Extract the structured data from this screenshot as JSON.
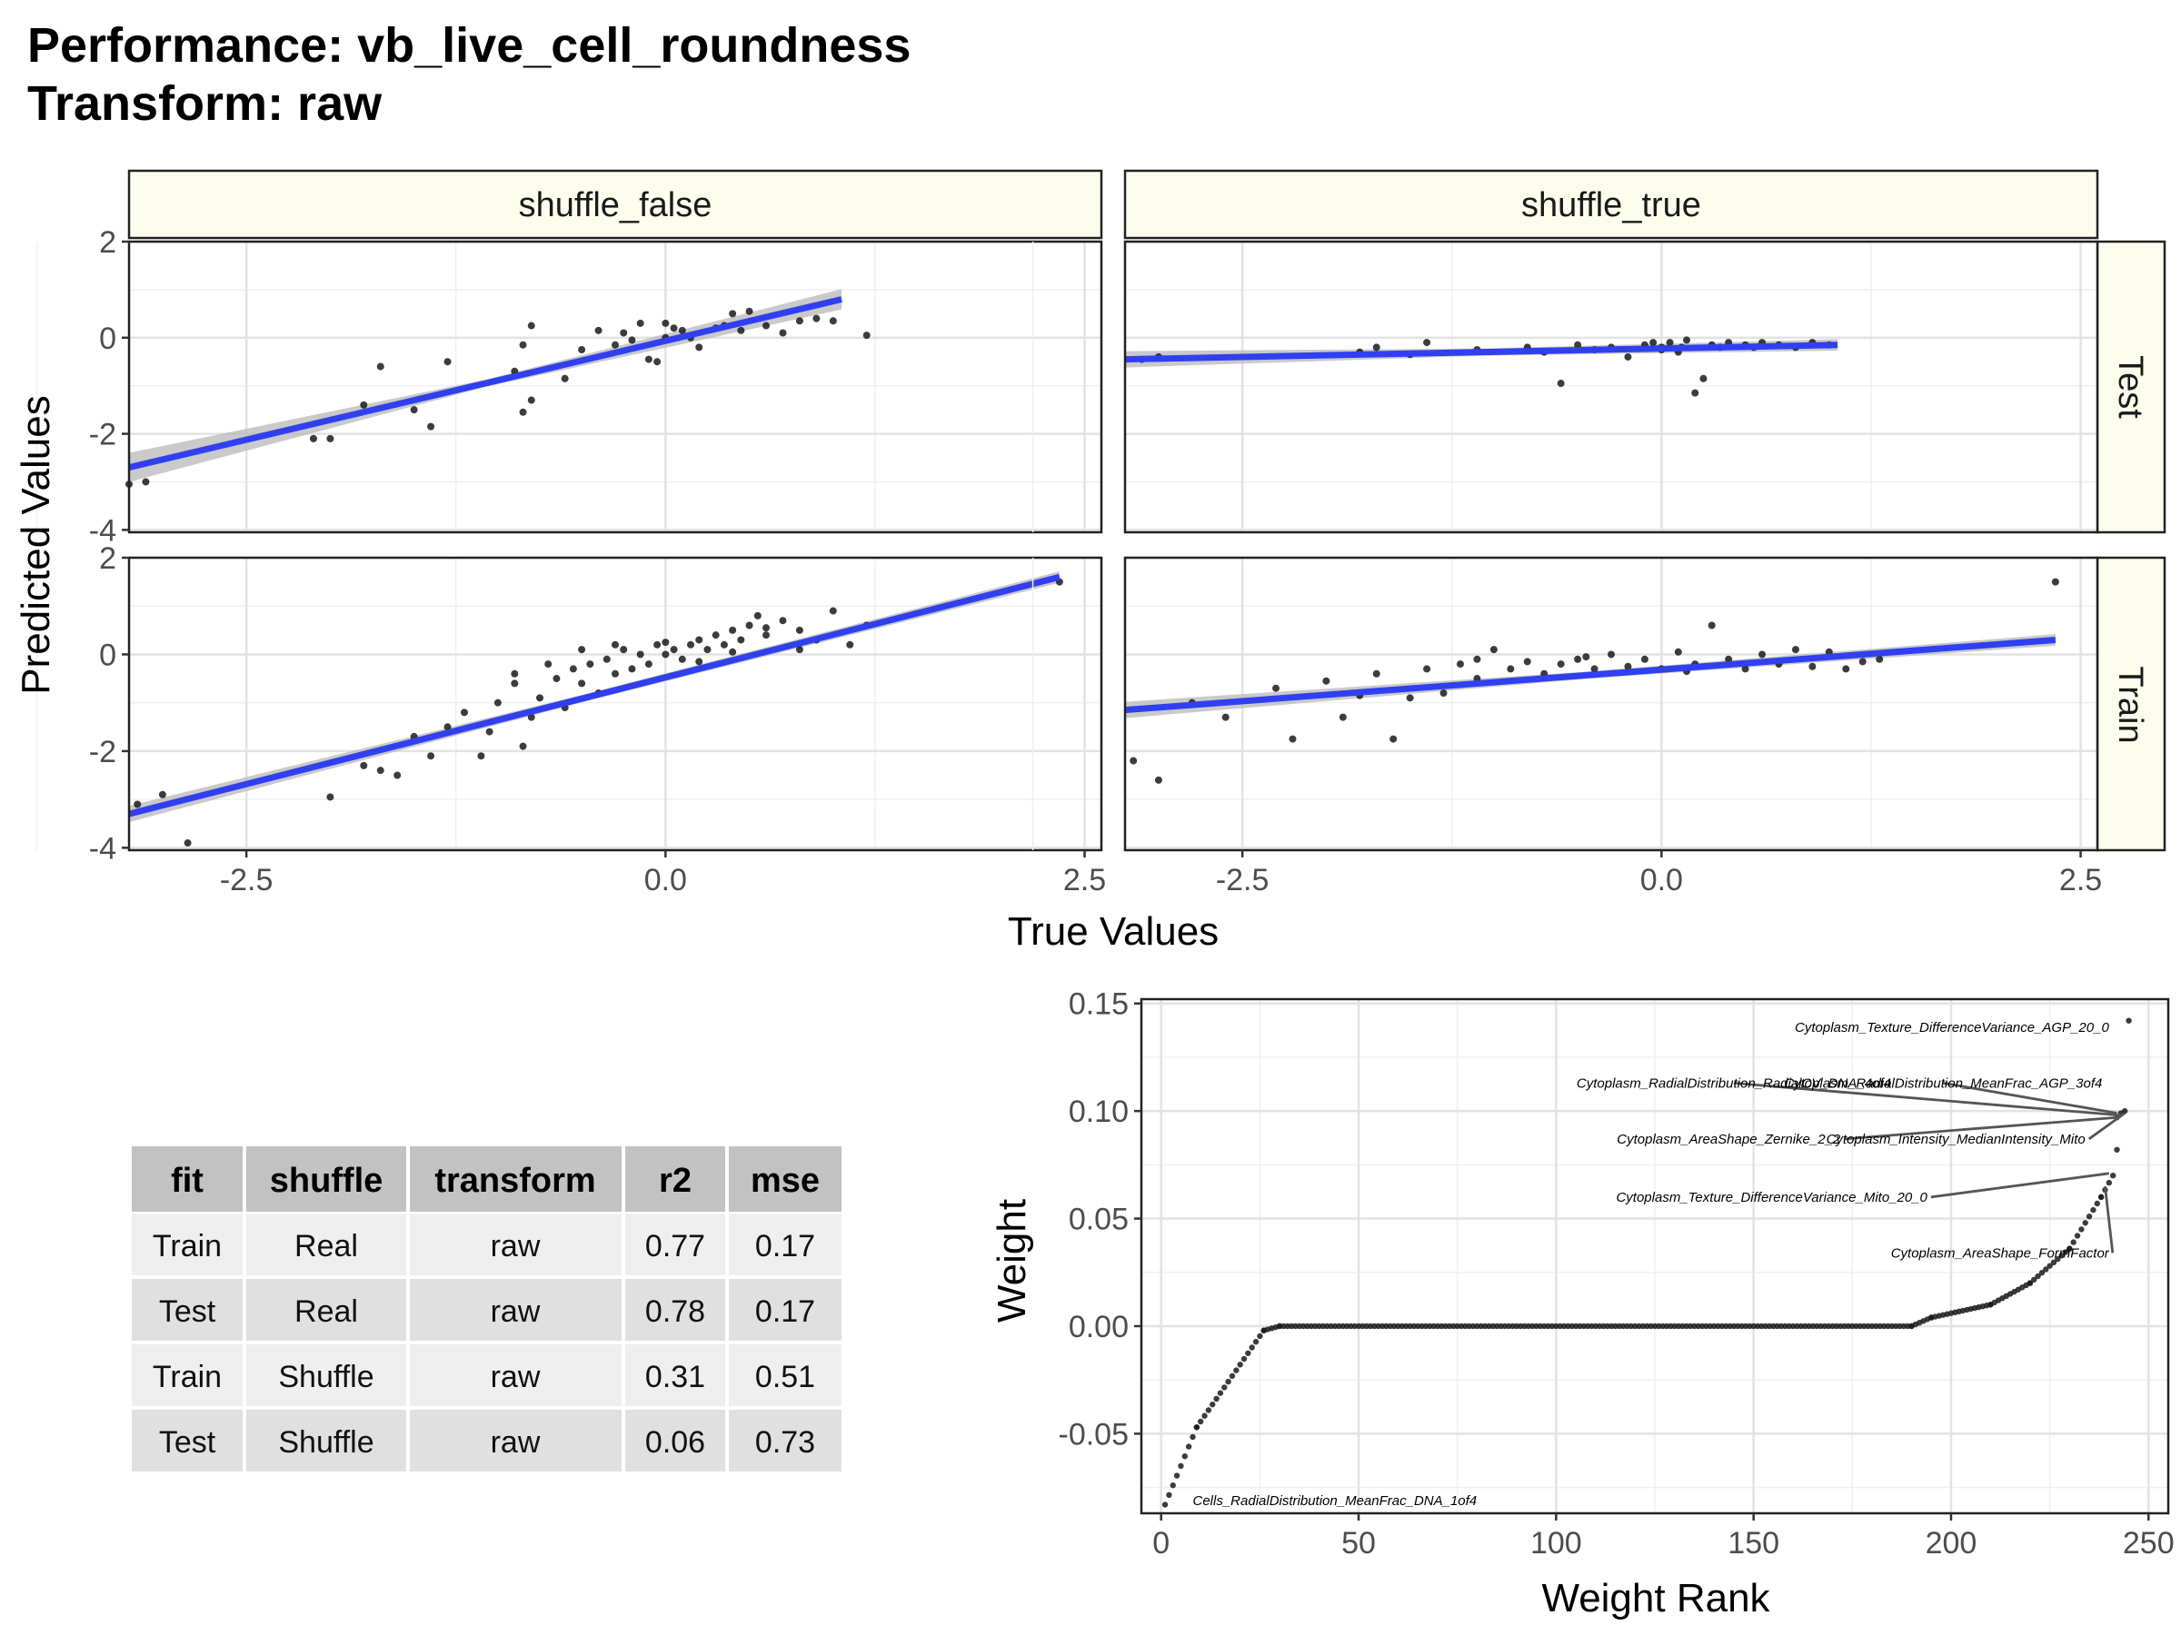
{
  "title": {
    "line1": "Performance: vb_live_cell_roundness",
    "line2": "Transform: raw"
  },
  "facets": {
    "columns": [
      "shuffle_false",
      "shuffle_true"
    ],
    "rows": [
      "Test",
      "Train"
    ],
    "xlabel": "True Values",
    "ylabel": "Predicted Values",
    "xticks": [
      -2.5,
      0.0,
      2.5
    ],
    "xtick_labels": [
      "-2.5",
      "0.0",
      "2.5"
    ],
    "yticks": [
      -4,
      -2,
      0,
      2
    ],
    "ytick_labels": [
      "-4",
      "-2",
      "0",
      "2"
    ]
  },
  "table": {
    "headers": [
      "fit",
      "shuffle",
      "transform",
      "r2",
      "mse"
    ],
    "rows": [
      [
        "Train",
        "Real",
        "raw",
        "0.77",
        "0.17"
      ],
      [
        "Test",
        "Real",
        "raw",
        "0.78",
        "0.17"
      ],
      [
        "Train",
        "Shuffle",
        "raw",
        "0.31",
        "0.51"
      ],
      [
        "Test",
        "Shuffle",
        "raw",
        "0.06",
        "0.73"
      ]
    ]
  },
  "weights": {
    "xlabel": "Weight Rank",
    "ylabel": "Weight",
    "xticks": [
      0,
      50,
      100,
      150,
      200,
      250
    ],
    "xtick_labels": [
      "0",
      "50",
      "100",
      "150",
      "200",
      "250"
    ],
    "yticks": [
      -0.05,
      0.0,
      0.05,
      0.1,
      0.15
    ],
    "ytick_labels": [
      "-0.05",
      "0.00",
      "0.05",
      "0.10",
      "0.15"
    ],
    "annotations": [
      "Cytoplasm_Texture_DifferenceVariance_AGP_20_0",
      "Cytoplasm_RadialDistribution_RadialCV_DNA_4of4",
      "Cytoplasm_RadialDistribution_MeanFrac_AGP_3of4",
      "Cytoplasm_AreaShape_Zernike_2_2",
      "Cytoplasm_Intensity_MedianIntensity_Mito",
      "Cytoplasm_Texture_DifferenceVariance_Mito_20_0",
      "Cytoplasm_AreaShape_FormFactor",
      "Cells_RadialDistribution_MeanFrac_DNA_1of4"
    ]
  },
  "colors": {
    "fit_line": "#3040f0",
    "ribbon": "#b8b8b8",
    "strip_bg": "#fdfdee",
    "point": "#1a1a1a",
    "header_bg": "#c2c2c2",
    "row_odd": "#efefef",
    "row_even": "#e0e0e0"
  },
  "chart_data": [
    {
      "type": "scatter",
      "panel": "shuffle_false / Test",
      "xlim": [
        -3.2,
        2.6
      ],
      "ylim": [
        -4.05,
        2.0
      ],
      "fit": {
        "x": [
          -3.2,
          1.05
        ],
        "y": [
          -2.7,
          0.8
        ]
      },
      "points": [
        [
          -3.2,
          -3.05
        ],
        [
          -3.1,
          -3.0
        ],
        [
          -2.1,
          -2.1
        ],
        [
          -2.0,
          -2.1
        ],
        [
          -1.8,
          -1.4
        ],
        [
          -1.7,
          -0.6
        ],
        [
          -1.5,
          -1.5
        ],
        [
          -1.4,
          -1.85
        ],
        [
          -1.3,
          -0.5
        ],
        [
          -0.9,
          -0.7
        ],
        [
          -0.85,
          -1.55
        ],
        [
          -0.8,
          -1.3
        ],
        [
          -0.85,
          -0.15
        ],
        [
          -0.8,
          0.25
        ],
        [
          -0.6,
          -0.85
        ],
        [
          -0.5,
          -0.25
        ],
        [
          -0.3,
          -0.15
        ],
        [
          -0.25,
          0.1
        ],
        [
          -0.2,
          -0.05
        ],
        [
          -0.15,
          0.3
        ],
        [
          -0.1,
          -0.45
        ],
        [
          -0.05,
          -0.5
        ],
        [
          0.0,
          0.0
        ],
        [
          0.05,
          0.2
        ],
        [
          0.1,
          0.15
        ],
        [
          0.2,
          -0.2
        ],
        [
          0.3,
          0.2
        ],
        [
          0.35,
          0.25
        ],
        [
          0.4,
          0.5
        ],
        [
          0.45,
          0.15
        ],
        [
          0.5,
          0.55
        ],
        [
          0.6,
          0.25
        ],
        [
          0.7,
          0.1
        ],
        [
          0.8,
          0.35
        ],
        [
          0.9,
          0.4
        ],
        [
          1.0,
          0.35
        ],
        [
          1.2,
          0.05
        ],
        [
          0.0,
          0.3
        ],
        [
          -0.4,
          0.15
        ],
        [
          0.15,
          0.0
        ]
      ]
    },
    {
      "type": "scatter",
      "panel": "shuffle_true / Test",
      "xlim": [
        -3.2,
        2.6
      ],
      "ylim": [
        -4.05,
        2.0
      ],
      "fit": {
        "x": [
          -3.2,
          1.05
        ],
        "y": [
          -0.45,
          -0.15
        ]
      },
      "points": [
        [
          -3.1,
          -0.45
        ],
        [
          -3.0,
          -0.4
        ],
        [
          -1.8,
          -0.3
        ],
        [
          -1.7,
          -0.2
        ],
        [
          -1.5,
          -0.35
        ],
        [
          -1.4,
          -0.1
        ],
        [
          -1.1,
          -0.25
        ],
        [
          -0.8,
          -0.2
        ],
        [
          -0.7,
          -0.3
        ],
        [
          -0.6,
          -0.95
        ],
        [
          -0.5,
          -0.15
        ],
        [
          -0.4,
          -0.25
        ],
        [
          -0.3,
          -0.2
        ],
        [
          -0.2,
          -0.4
        ],
        [
          -0.1,
          -0.15
        ],
        [
          -0.05,
          -0.1
        ],
        [
          0.0,
          -0.2
        ],
        [
          0.05,
          -0.1
        ],
        [
          0.1,
          -0.3
        ],
        [
          0.15,
          -0.05
        ],
        [
          0.2,
          -1.15
        ],
        [
          0.25,
          -0.85
        ],
        [
          0.3,
          -0.15
        ],
        [
          0.35,
          -0.2
        ],
        [
          0.4,
          -0.1
        ],
        [
          0.5,
          -0.15
        ],
        [
          0.55,
          -0.2
        ],
        [
          0.6,
          -0.1
        ],
        [
          0.7,
          -0.15
        ],
        [
          0.8,
          -0.2
        ],
        [
          0.9,
          -0.1
        ],
        [
          1.0,
          -0.15
        ],
        [
          0.0,
          -0.25
        ],
        [
          0.12,
          -0.2
        ]
      ]
    },
    {
      "type": "scatter",
      "panel": "shuffle_false / Train",
      "xlim": [
        -3.2,
        2.6
      ],
      "ylim": [
        -4.05,
        2.0
      ],
      "fit": {
        "x": [
          -3.2,
          2.35
        ],
        "y": [
          -3.3,
          1.6
        ]
      },
      "points": [
        [
          -3.15,
          -3.1
        ],
        [
          -3.0,
          -2.9
        ],
        [
          -2.85,
          -3.9
        ],
        [
          -2.0,
          -2.95
        ],
        [
          -1.8,
          -2.3
        ],
        [
          -1.7,
          -2.4
        ],
        [
          -1.6,
          -2.5
        ],
        [
          -1.4,
          -2.1
        ],
        [
          -1.3,
          -1.5
        ],
        [
          -1.2,
          -1.2
        ],
        [
          -1.1,
          -2.1
        ],
        [
          -1.05,
          -1.6
        ],
        [
          -1.0,
          -1.0
        ],
        [
          -0.9,
          -0.6
        ],
        [
          -0.85,
          -1.9
        ],
        [
          -0.8,
          -1.3
        ],
        [
          -0.75,
          -0.9
        ],
        [
          -0.7,
          -0.2
        ],
        [
          -0.65,
          -0.5
        ],
        [
          -0.6,
          -1.1
        ],
        [
          -0.55,
          -0.3
        ],
        [
          -0.5,
          -0.6
        ],
        [
          -0.45,
          -0.2
        ],
        [
          -0.4,
          -0.8
        ],
        [
          -0.35,
          -0.1
        ],
        [
          -0.3,
          -0.4
        ],
        [
          -0.25,
          0.1
        ],
        [
          -0.2,
          -0.3
        ],
        [
          -0.15,
          0.0
        ],
        [
          -0.1,
          -0.2
        ],
        [
          -0.05,
          0.2
        ],
        [
          0.0,
          0.0
        ],
        [
          0.05,
          0.1
        ],
        [
          0.1,
          -0.1
        ],
        [
          0.15,
          0.2
        ],
        [
          0.2,
          0.3
        ],
        [
          0.25,
          0.1
        ],
        [
          0.3,
          0.4
        ],
        [
          0.35,
          0.2
        ],
        [
          0.4,
          0.5
        ],
        [
          0.45,
          0.3
        ],
        [
          0.5,
          0.6
        ],
        [
          0.55,
          0.8
        ],
        [
          0.6,
          0.4
        ],
        [
          0.7,
          0.7
        ],
        [
          0.8,
          0.5
        ],
        [
          0.9,
          0.3
        ],
        [
          1.0,
          0.9
        ],
        [
          1.1,
          0.2
        ],
        [
          1.2,
          0.6
        ],
        [
          2.35,
          1.5
        ],
        [
          -0.3,
          0.2
        ],
        [
          0.0,
          0.25
        ],
        [
          0.2,
          -0.15
        ],
        [
          0.4,
          0.05
        ],
        [
          -0.5,
          0.1
        ],
        [
          0.6,
          0.55
        ],
        [
          0.8,
          0.1
        ],
        [
          -0.9,
          -0.4
        ],
        [
          -1.5,
          -1.7
        ]
      ]
    },
    {
      "type": "scatter",
      "panel": "shuffle_true / Train",
      "xlim": [
        -3.2,
        2.6
      ],
      "ylim": [
        -4.05,
        2.0
      ],
      "fit": {
        "x": [
          -3.2,
          2.35
        ],
        "y": [
          -1.15,
          0.3
        ]
      },
      "points": [
        [
          -3.15,
          -2.2
        ],
        [
          -3.0,
          -2.6
        ],
        [
          -2.8,
          -1.0
        ],
        [
          -2.6,
          -1.3
        ],
        [
          -2.3,
          -0.7
        ],
        [
          -2.2,
          -1.75
        ],
        [
          -2.0,
          -0.55
        ],
        [
          -1.9,
          -1.3
        ],
        [
          -1.7,
          -0.4
        ],
        [
          -1.6,
          -1.75
        ],
        [
          -1.5,
          -0.9
        ],
        [
          -1.4,
          -0.3
        ],
        [
          -1.3,
          -0.8
        ],
        [
          -1.2,
          -0.2
        ],
        [
          -1.1,
          -0.5
        ],
        [
          -1.0,
          0.1
        ],
        [
          -0.9,
          -0.3
        ],
        [
          -0.8,
          -0.15
        ],
        [
          -0.7,
          -0.4
        ],
        [
          -0.6,
          -0.2
        ],
        [
          -0.5,
          -0.1
        ],
        [
          -0.4,
          -0.3
        ],
        [
          -0.3,
          0.0
        ],
        [
          -0.2,
          -0.25
        ],
        [
          -0.1,
          -0.1
        ],
        [
          0.0,
          -0.3
        ],
        [
          0.1,
          0.05
        ],
        [
          0.2,
          -0.2
        ],
        [
          0.3,
          0.6
        ],
        [
          0.4,
          -0.1
        ],
        [
          0.5,
          -0.3
        ],
        [
          0.6,
          0.0
        ],
        [
          0.7,
          -0.2
        ],
        [
          0.8,
          0.1
        ],
        [
          0.9,
          -0.25
        ],
        [
          1.0,
          0.05
        ],
        [
          1.1,
          -0.3
        ],
        [
          1.2,
          -0.15
        ],
        [
          1.3,
          -0.1
        ],
        [
          2.35,
          1.5
        ],
        [
          -1.8,
          -0.85
        ],
        [
          -1.1,
          -0.1
        ],
        [
          -0.45,
          -0.05
        ],
        [
          0.15,
          -0.35
        ]
      ]
    },
    {
      "type": "scatter",
      "panel": "weights",
      "xlabel": "Weight Rank",
      "ylabel": "Weight",
      "xlim": [
        -5,
        255
      ],
      "ylim": [
        -0.087,
        0.152
      ],
      "segments": [
        {
          "x": [
            1,
            9
          ],
          "y": [
            -0.083,
            -0.047
          ]
        },
        {
          "x": [
            9,
            26
          ],
          "y": [
            -0.047,
            -0.002
          ]
        },
        {
          "x": [
            26,
            30
          ],
          "y": [
            -0.002,
            0.0
          ]
        },
        {
          "x": [
            30,
            190
          ],
          "y": [
            0.0,
            0.0
          ]
        },
        {
          "x": [
            190,
            195
          ],
          "y": [
            0.0,
            0.004
          ]
        },
        {
          "x": [
            195,
            210
          ],
          "y": [
            0.004,
            0.01
          ]
        },
        {
          "x": [
            210,
            220
          ],
          "y": [
            0.01,
            0.02
          ]
        },
        {
          "x": [
            220,
            230
          ],
          "y": [
            0.02,
            0.036
          ]
        },
        {
          "x": [
            230,
            238
          ],
          "y": [
            0.036,
            0.06
          ]
        },
        {
          "x": [
            238,
            241
          ],
          "y": [
            0.06,
            0.07
          ]
        }
      ],
      "extra_points": [
        [
          242,
          0.082
        ],
        [
          242,
          0.097
        ],
        [
          243,
          0.099
        ],
        [
          244,
          0.1
        ],
        [
          245,
          0.142
        ]
      ],
      "label_anchors": [
        {
          "label_x": 240,
          "label_y": 0.139,
          "point_x": 245,
          "point_y": 0.142,
          "leader": false,
          "align": "end"
        },
        {
          "label_x": 145,
          "label_y": 0.113,
          "point_x": 243,
          "point_y": 0.098,
          "leader": true,
          "align": "middle"
        },
        {
          "label_x": 198,
          "label_y": 0.113,
          "point_x": 242,
          "point_y": 0.099,
          "leader": true,
          "align": "middle"
        },
        {
          "label_x": 172,
          "label_y": 0.087,
          "point_x": 242,
          "point_y": 0.097,
          "leader": true,
          "align": "end"
        },
        {
          "label_x": 234,
          "label_y": 0.087,
          "point_x": 244,
          "point_y": 0.099,
          "leader": true,
          "align": "end"
        },
        {
          "label_x": 194,
          "label_y": 0.06,
          "point_x": 240,
          "point_y": 0.071,
          "leader": true,
          "align": "end"
        },
        {
          "label_x": 240,
          "label_y": 0.034,
          "point_x": 239,
          "point_y": 0.065,
          "leader": true,
          "align": "end"
        },
        {
          "label_x": 8,
          "label_y": -0.081,
          "point_x": 1,
          "point_y": -0.083,
          "leader": false,
          "align": "start"
        }
      ]
    }
  ]
}
